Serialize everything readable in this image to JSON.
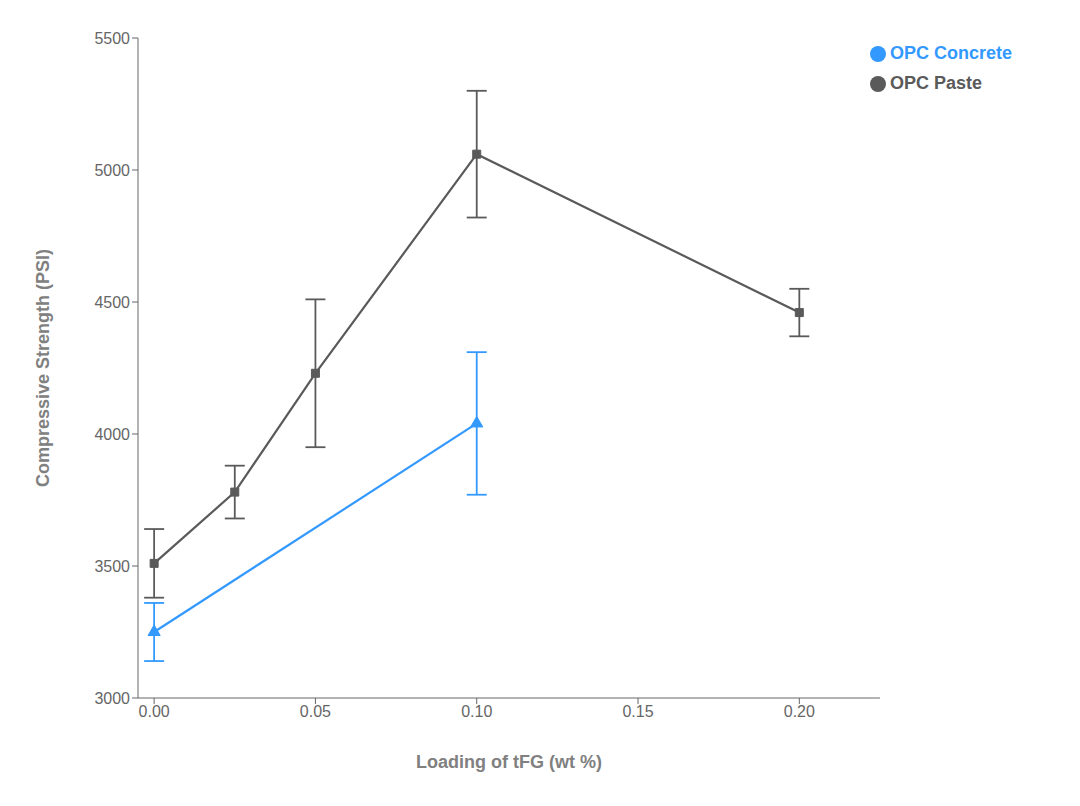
{
  "chart_data": {
    "type": "line",
    "xlabel": "Loading of tFG (wt %)",
    "ylabel": "Compressive Strength (PSI)",
    "xlim": [
      -0.005,
      0.225
    ],
    "xticks": [
      {
        "value": 0.0,
        "label": "0.00"
      },
      {
        "value": 0.05,
        "label": "0.05"
      },
      {
        "value": 0.1,
        "label": "0.10"
      },
      {
        "value": 0.15,
        "label": "0.15"
      },
      {
        "value": 0.2,
        "label": "0.20"
      }
    ],
    "ylim": [
      3000,
      5500
    ],
    "yticks": [
      3000,
      3500,
      4000,
      4500,
      5000,
      5500
    ],
    "grid": false,
    "legend": "upper right",
    "series": [
      {
        "name": "OPC Paste",
        "color": "#5a5a5a",
        "marker": "square",
        "x": [
          0.0,
          0.025,
          0.05,
          0.1,
          0.2
        ],
        "values": [
          3510,
          3780,
          4230,
          5060,
          4460
        ],
        "errors": [
          130,
          100,
          280,
          240,
          90
        ]
      },
      {
        "name": "OPC Concrete",
        "color": "#3399ff",
        "marker": "triangle",
        "x": [
          0.0,
          0.1
        ],
        "values": [
          3250,
          4040
        ],
        "errors": [
          110,
          270
        ]
      }
    ]
  }
}
